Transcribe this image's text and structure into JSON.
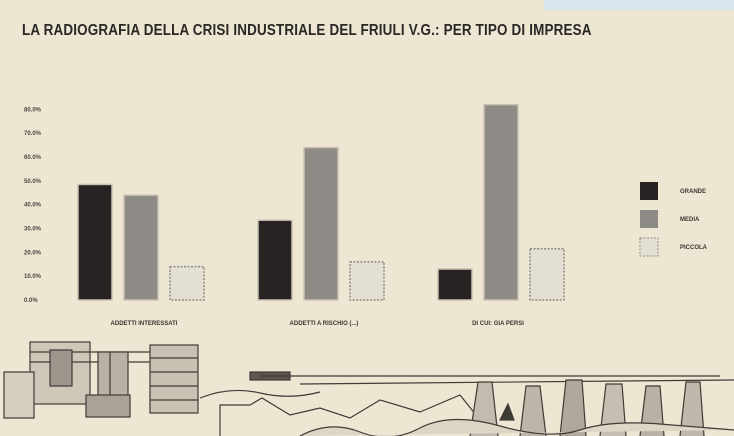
{
  "title": "LA RADIOGRAFIA DELLA CRISI INDUSTRIALE DEL FRIULI V.G.: PER TIPO DI IMPRESA",
  "chart_data": {
    "type": "bar",
    "title": "LA RADIOGRAFIA DELLA CRISI INDUSTRIALE DEL FRIULI V.G.: PER TIPO DI IMPRESA",
    "categories": [
      "ADDETTI INTERESSATI",
      "ADDETTI A RISCHIO (...)",
      "DI CUI: GIA PERSI"
    ],
    "series": [
      {
        "name": "GRANDE",
        "color": "#262322",
        "values": [
          48.5,
          33.5,
          13.0
        ]
      },
      {
        "name": "MEDIA",
        "color": "#8e8a85",
        "values": [
          44.0,
          64.0,
          82.0
        ]
      },
      {
        "name": "PICCOLA",
        "color": "#e4dfd3",
        "values": [
          14.0,
          16.0,
          21.5
        ]
      }
    ],
    "ylim": [
      0,
      85
    ],
    "yticks": [
      0,
      10,
      20,
      30,
      40,
      50,
      60,
      70,
      80
    ],
    "ytick_labels": [
      "0.0%",
      "10.0%",
      "20.0%",
      "30.0%",
      "40.0%",
      "50.0%",
      "60.0%",
      "70.0%",
      "80.0%"
    ],
    "grid": false,
    "legend_position": "right"
  }
}
